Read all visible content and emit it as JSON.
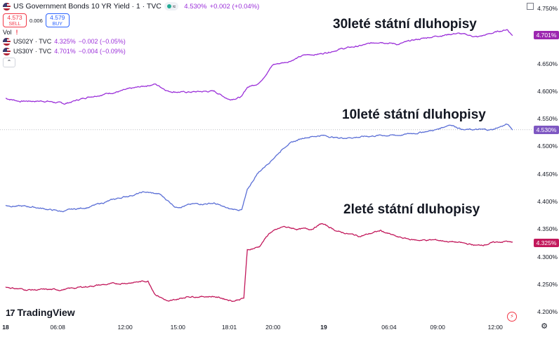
{
  "header": {
    "title": "US Government Bonds 10 YR Yield · 1 · TVC",
    "status_icon": "≈",
    "last": "4.530%",
    "change": "+0.002 (+0.04%)",
    "sell_price": "4.573",
    "sell_label": "SELL",
    "spread": "0.006",
    "buy_price": "4.579",
    "buy_label": "BUY",
    "vol_label": "Vol",
    "vol_warning": "!",
    "compare": [
      {
        "symbol": "US02Y · TVC",
        "value": "4.325%",
        "change": "−0.002 (−0.05%)"
      },
      {
        "symbol": "US30Y · TVC",
        "value": "4.701%",
        "change": "−0.004 (−0.09%)"
      }
    ],
    "collapse_glyph": "⌃"
  },
  "annotations": {
    "y30": "30leté státní dluhopisy",
    "y10": "10leté státní dluhopisy",
    "y2": "2leté státní dluhopisy"
  },
  "price_tags": {
    "y30": "4.701%",
    "y10": "4.530%",
    "y2": "4.325%"
  },
  "branding": {
    "logo_mark": "17",
    "name": "TradingView"
  },
  "colors": {
    "y30": "#9b30d9",
    "y10": "#5b6fd6",
    "y2": "#c2185b",
    "tag30": "#9c27b0",
    "tag10": "#7e57c2",
    "tag2": "#c2185b"
  },
  "chart_data": {
    "type": "line",
    "xlabel": "",
    "ylabel": "",
    "ylim": [
      4.19,
      4.755
    ],
    "y_ticks": [
      "4.750%",
      "4.700%",
      "4.650%",
      "4.600%",
      "4.550%",
      "4.500%",
      "4.450%",
      "4.400%",
      "4.350%",
      "4.300%",
      "4.250%",
      "4.200%"
    ],
    "x_tick_labels": [
      {
        "label": "18",
        "bold": true
      },
      {
        "label": "06:08",
        "bold": false
      },
      {
        "label": "12:00",
        "bold": false
      },
      {
        "label": "15:00",
        "bold": false
      },
      {
        "label": "18:01",
        "bold": false
      },
      {
        "label": "20:00",
        "bold": false
      },
      {
        "label": "19",
        "bold": true
      },
      {
        "label": "06:04",
        "bold": false
      },
      {
        "label": "09:00",
        "bold": false
      },
      {
        "label": "12:00",
        "bold": false
      }
    ],
    "x_tick_index": [
      0,
      75,
      172,
      248,
      322,
      385,
      458,
      552,
      622,
      705
    ],
    "n_points": 731,
    "series": [
      {
        "name": "US30Y",
        "anchors": [
          [
            0,
            4.587
          ],
          [
            20,
            4.582
          ],
          [
            60,
            4.582
          ],
          [
            85,
            4.577
          ],
          [
            120,
            4.59
          ],
          [
            165,
            4.6
          ],
          [
            215,
            4.613
          ],
          [
            235,
            4.6
          ],
          [
            258,
            4.598
          ],
          [
            300,
            4.6
          ],
          [
            322,
            4.585
          ],
          [
            340,
            4.59
          ],
          [
            348,
            4.607
          ],
          [
            365,
            4.615
          ],
          [
            385,
            4.648
          ],
          [
            405,
            4.653
          ],
          [
            430,
            4.665
          ],
          [
            455,
            4.668
          ],
          [
            480,
            4.676
          ],
          [
            510,
            4.682
          ],
          [
            540,
            4.69
          ],
          [
            565,
            4.685
          ],
          [
            590,
            4.693
          ],
          [
            620,
            4.7
          ],
          [
            650,
            4.705
          ],
          [
            680,
            4.698
          ],
          [
            700,
            4.705
          ],
          [
            722,
            4.712
          ],
          [
            730,
            4.701
          ]
        ],
        "last": 4.701
      },
      {
        "name": "US10Y",
        "anchors": [
          [
            0,
            4.393
          ],
          [
            40,
            4.39
          ],
          [
            80,
            4.382
          ],
          [
            120,
            4.39
          ],
          [
            160,
            4.405
          ],
          [
            200,
            4.417
          ],
          [
            222,
            4.413
          ],
          [
            245,
            4.39
          ],
          [
            270,
            4.395
          ],
          [
            300,
            4.397
          ],
          [
            322,
            4.386
          ],
          [
            340,
            4.385
          ],
          [
            348,
            4.42
          ],
          [
            362,
            4.45
          ],
          [
            385,
            4.478
          ],
          [
            405,
            4.503
          ],
          [
            430,
            4.516
          ],
          [
            455,
            4.52
          ],
          [
            480,
            4.515
          ],
          [
            510,
            4.517
          ],
          [
            540,
            4.52
          ],
          [
            565,
            4.52
          ],
          [
            590,
            4.524
          ],
          [
            620,
            4.53
          ],
          [
            640,
            4.54
          ],
          [
            660,
            4.53
          ],
          [
            680,
            4.53
          ],
          [
            700,
            4.53
          ],
          [
            722,
            4.54
          ],
          [
            730,
            4.53
          ]
        ],
        "last": 4.53
      },
      {
        "name": "US02Y",
        "anchors": [
          [
            0,
            4.245
          ],
          [
            30,
            4.24
          ],
          [
            80,
            4.24
          ],
          [
            130,
            4.248
          ],
          [
            180,
            4.253
          ],
          [
            205,
            4.256
          ],
          [
            215,
            4.233
          ],
          [
            235,
            4.218
          ],
          [
            262,
            4.228
          ],
          [
            300,
            4.228
          ],
          [
            328,
            4.22
          ],
          [
            343,
            4.225
          ],
          [
            348,
            4.312
          ],
          [
            365,
            4.318
          ],
          [
            380,
            4.343
          ],
          [
            400,
            4.354
          ],
          [
            420,
            4.35
          ],
          [
            440,
            4.35
          ],
          [
            455,
            4.36
          ],
          [
            480,
            4.345
          ],
          [
            510,
            4.337
          ],
          [
            540,
            4.347
          ],
          [
            565,
            4.335
          ],
          [
            590,
            4.33
          ],
          [
            620,
            4.33
          ],
          [
            650,
            4.326
          ],
          [
            680,
            4.32
          ],
          [
            700,
            4.325
          ],
          [
            722,
            4.328
          ],
          [
            730,
            4.325
          ]
        ],
        "last": 4.325
      }
    ]
  }
}
